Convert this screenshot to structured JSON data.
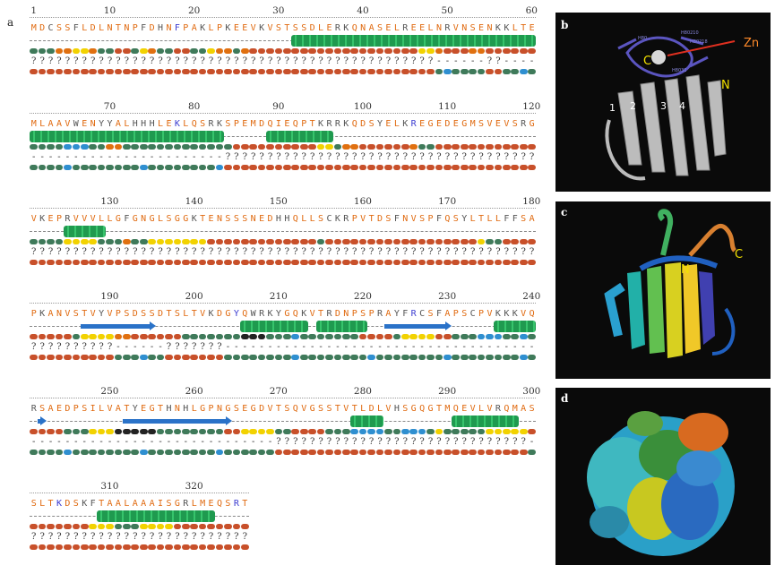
{
  "labels": {
    "a": "a",
    "b": "b",
    "c": "c",
    "d": "d"
  },
  "panel_b": {
    "zn": "Zn",
    "c": "C",
    "n": "N",
    "strands": [
      "1",
      "2",
      "3",
      "4"
    ],
    "residues": [
      "H80210",
      "H80218",
      "H80..",
      "H8031"
    ]
  },
  "panel_c": {
    "n": "N",
    "c": "C"
  },
  "blocks": [
    {
      "start": 1,
      "ticks": [
        "1",
        "10",
        "20",
        "30",
        "40",
        "50",
        "60"
      ],
      "seq": "MDCSSFLDLNTNPFDHNFPAKLPKEEVKVSTSSDLERKQNASELREELNRVNSENKKLTE",
      "ss": [
        {
          "type": "helix",
          "from": 32,
          "to": 60
        }
      ],
      "conf": "gggooyyoggrrgyoggrrggyoogorrrrrrrrrrrrrrrrrrrryyorrroorrrrrr",
      "dis": "????????????????????????????????????????????????------??-----"
    },
    {
      "start": 61,
      "ticks": [
        "70",
        "80",
        "90",
        "100",
        "110",
        "120"
      ],
      "seq": "MLAAVWENYYALHHHLEKLQSRKSPEMDQIEQPTKRRKQDSYELKREGEDEGMSVEVSRG",
      "ss": [
        {
          "type": "helix",
          "from": 61,
          "to": 83
        },
        {
          "type": "helix",
          "from": 89,
          "to": 96
        }
      ],
      "conf": "ggggbbbggoogggggggggggggrrrrrrrrrryygoorrrrrroggrrrrrrrrrrrr",
      "dis": "-----------------------?????????????????????????????????????"
    },
    {
      "start": 121,
      "ticks": [
        "130",
        "140",
        "150",
        "160",
        "170",
        "180"
      ],
      "seq": "VKEPRVVVLLGFGNGLSGGKTENSSSNEDHHQLLSCKRPVTDSFNVSPFQSYLTLLFFSA",
      "ss": [
        {
          "type": "helix",
          "from": 125,
          "to": 129
        }
      ],
      "conf": "ggggyyyygggoggyyyyyyyrrrrrrrrrrrrrgrrrrrrrrrrrrrrrrrryggrrrr",
      "dis": "????????????????????????????????????????????????????????????"
    },
    {
      "start": 181,
      "ticks": [
        "190",
        "200",
        "210",
        "220",
        "230",
        "240"
      ],
      "seq": "PKANVSTVYVPSDSSDTSLTVKDGYQWRKYGQKVTRDNPSPRAYFRCSFAPSCPVKKKVQ",
      "ss": [
        {
          "type": "strand",
          "from": 187,
          "to": 195
        },
        {
          "type": "helix",
          "from": 206,
          "to": 213
        },
        {
          "type": "helix",
          "from": 215,
          "to": 220
        },
        {
          "type": "strand",
          "from": 223,
          "to": 230
        },
        {
          "type": "helix",
          "from": 236,
          "to": 240
        }
      ],
      "conf": "rrrrrgyyyyoorrrrrrgggggggkkkgggbgggggggrrrrgyyyyrrgggbbbggbg",
      "dis": "??????????------???????--------------------------------------"
    },
    {
      "start": 241,
      "ticks": [
        "250",
        "260",
        "270",
        "280",
        "290",
        "300"
      ],
      "seq": "RSAEDPSILVATYEGTHNHLGPNGSEGDVTSQVGSSTVTLDLVHSGQGTMQEVLVRQMAS",
      "ss": [
        {
          "type": "strand",
          "from": 242,
          "to": 242
        },
        {
          "type": "strand",
          "from": 252,
          "to": 264
        },
        {
          "type": "helix",
          "from": 279,
          "to": 282
        },
        {
          "type": "helix",
          "from": 291,
          "to": 298
        }
      ],
      "conf": "rrrrgggyyykkkkkggggggggrryyyyggrrrrgggbbbbggbbbgygggggyyyyyrg",
      "dis": "-----------------------------??????????????????????????????"
    },
    {
      "start": 301,
      "ticks": [
        "310",
        "320"
      ],
      "seq": "SLTKDSKFTAALAAAISGRLMEQSRT",
      "ss": [
        {
          "type": "helix",
          "from": 309,
          "to": 322
        }
      ],
      "conf": "rrrrrrryyygggyyyyrrrrrrrrr",
      "dis": "??????????????????????????"
    }
  ],
  "colors": {
    "o": "#e07010",
    "r": "#c8502a",
    "y": "#f2d200",
    "g": "#3f7a5a",
    "b": "#2f8fd0",
    "k": "#222222"
  }
}
